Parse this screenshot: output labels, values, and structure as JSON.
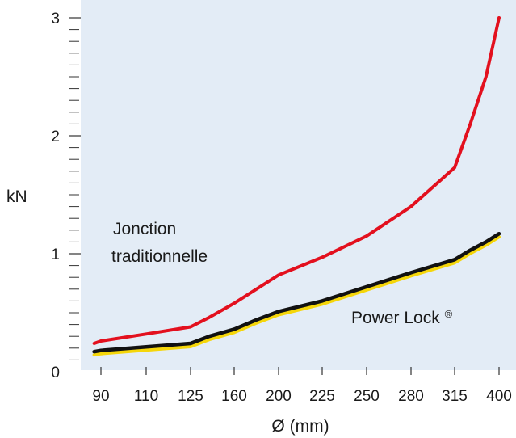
{
  "chart_data": {
    "type": "line",
    "xlabel": "Ø (mm)",
    "ylabel": "kN",
    "categories": [
      "90",
      "110",
      "125",
      "160",
      "200",
      "225",
      "250",
      "280",
      "315",
      "400"
    ],
    "ylim": [
      0,
      3
    ],
    "y_ticks": [
      "0",
      "1",
      "2",
      "3"
    ],
    "y_minor_step": 0.1,
    "grid": false,
    "legend": "inline labels",
    "background_color": "#e3ecf6",
    "series": [
      {
        "name": "Jonction traditionnelle",
        "label_lines": [
          "Jonction",
          "traditionnelle"
        ],
        "color": "#e3101e",
        "x": [
          87,
          90,
          110,
          125,
          140,
          160,
          180,
          200,
          225,
          250,
          280,
          315,
          345,
          375,
          400
        ],
        "values": [
          0.24,
          0.26,
          0.32,
          0.38,
          0.46,
          0.58,
          0.7,
          0.82,
          0.97,
          1.15,
          1.4,
          1.73,
          2.1,
          2.5,
          3.0
        ]
      },
      {
        "name": "Power Lock®",
        "label_main": "Power Lock",
        "label_sup": "®",
        "color": "#111111",
        "accent_color": "#f5d60a",
        "x": [
          87,
          90,
          110,
          125,
          140,
          160,
          180,
          200,
          225,
          250,
          280,
          315,
          345,
          375,
          400
        ],
        "values": [
          0.17,
          0.18,
          0.21,
          0.24,
          0.3,
          0.36,
          0.44,
          0.51,
          0.6,
          0.72,
          0.84,
          0.95,
          1.03,
          1.1,
          1.17
        ]
      }
    ]
  }
}
